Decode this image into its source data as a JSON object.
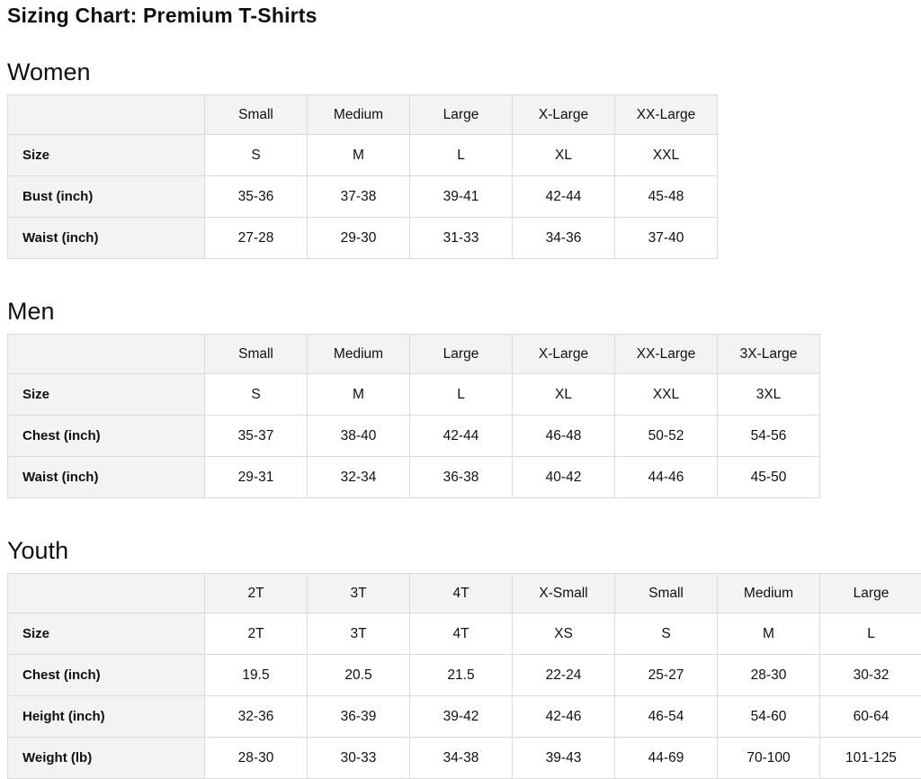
{
  "page": {
    "title": "Sizing Chart: Premium T-Shirts"
  },
  "colors": {
    "text": "#0f1111",
    "table_header_bg": "#f3f3f3",
    "table_border": "#d8dadb",
    "background": "#ffffff"
  },
  "sections": [
    {
      "heading": "Women",
      "columns": [
        "Small",
        "Medium",
        "Large",
        "X-Large",
        "XX-Large"
      ],
      "rows": [
        {
          "label": "Size",
          "values": [
            "S",
            "M",
            "L",
            "XL",
            "XXL"
          ]
        },
        {
          "label": "Bust (inch)",
          "values": [
            "35-36",
            "37-38",
            "39-41",
            "42-44",
            "45-48"
          ]
        },
        {
          "label": "Waist (inch)",
          "values": [
            "27-28",
            "29-30",
            "31-33",
            "34-36",
            "37-40"
          ]
        }
      ]
    },
    {
      "heading": "Men",
      "columns": [
        "Small",
        "Medium",
        "Large",
        "X-Large",
        "XX-Large",
        "3X-Large"
      ],
      "rows": [
        {
          "label": "Size",
          "values": [
            "S",
            "M",
            "L",
            "XL",
            "XXL",
            "3XL"
          ]
        },
        {
          "label": "Chest (inch)",
          "values": [
            "35-37",
            "38-40",
            "42-44",
            "46-48",
            "50-52",
            "54-56"
          ]
        },
        {
          "label": "Waist (inch)",
          "values": [
            "29-31",
            "32-34",
            "36-38",
            "40-42",
            "44-46",
            "45-50"
          ]
        }
      ]
    },
    {
      "heading": "Youth",
      "columns": [
        "2T",
        "3T",
        "4T",
        "X-Small",
        "Small",
        "Medium",
        "Large"
      ],
      "rows": [
        {
          "label": "Size",
          "values": [
            "2T",
            "3T",
            "4T",
            "XS",
            "S",
            "M",
            "L"
          ]
        },
        {
          "label": "Chest (inch)",
          "values": [
            "19.5",
            "20.5",
            "21.5",
            "22-24",
            "25-27",
            "28-30",
            "30-32"
          ]
        },
        {
          "label": "Height (inch)",
          "values": [
            "32-36",
            "36-39",
            "39-42",
            "42-46",
            "46-54",
            "54-60",
            "60-64"
          ]
        },
        {
          "label": "Weight (lb)",
          "values": [
            "28-30",
            "30-33",
            "34-38",
            "39-43",
            "44-69",
            "70-100",
            "101-125"
          ]
        }
      ]
    }
  ]
}
